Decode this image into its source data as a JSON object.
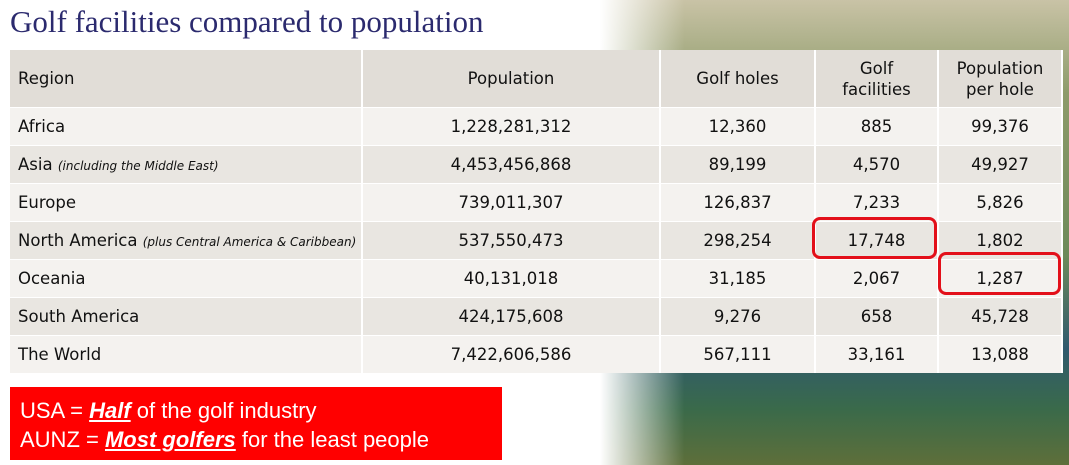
{
  "header": {
    "title": "Golf facilities compared to population"
  },
  "table": {
    "columns": [
      [
        "Region"
      ],
      [
        "Population"
      ],
      [
        "Golf holes"
      ],
      [
        "Golf",
        "facilities"
      ],
      [
        "Population",
        "per hole"
      ]
    ],
    "rows": [
      {
        "region": "Africa",
        "cells": [
          "1,228,281,312",
          "12,360",
          "885",
          "99,376"
        ]
      },
      {
        "region": "Asia",
        "note": "(including the Middle East)",
        "cells": [
          "4,453,456,868",
          "89,199",
          "4,570",
          "49,927"
        ]
      },
      {
        "region": "Europe",
        "cells": [
          "739,011,307",
          "126,837",
          "7,233",
          "5,826"
        ]
      },
      {
        "region": "North America",
        "note": "(plus Central America & Caribbean)",
        "cells": [
          "537,550,473",
          "298,254",
          "17,748",
          "1,802"
        ]
      },
      {
        "region": "Oceania",
        "cells": [
          "40,131,018",
          "31,185",
          "2,067",
          "1,287"
        ]
      },
      {
        "region": "South America",
        "cells": [
          "424,175,608",
          "9,276",
          "658",
          "45,728"
        ]
      },
      {
        "region": "The World",
        "cells": [
          "7,422,606,586",
          "567,111",
          "33,161",
          "13,088"
        ]
      }
    ]
  },
  "callout": {
    "lines": [
      [
        {
          "text": "USA = "
        },
        {
          "text": "Half",
          "em": true
        },
        {
          "text": " of the golf industry"
        }
      ],
      [
        {
          "text": "AUNZ = "
        },
        {
          "text": "Most golfers",
          "em": true
        },
        {
          "text": " for the least people"
        }
      ]
    ]
  }
}
